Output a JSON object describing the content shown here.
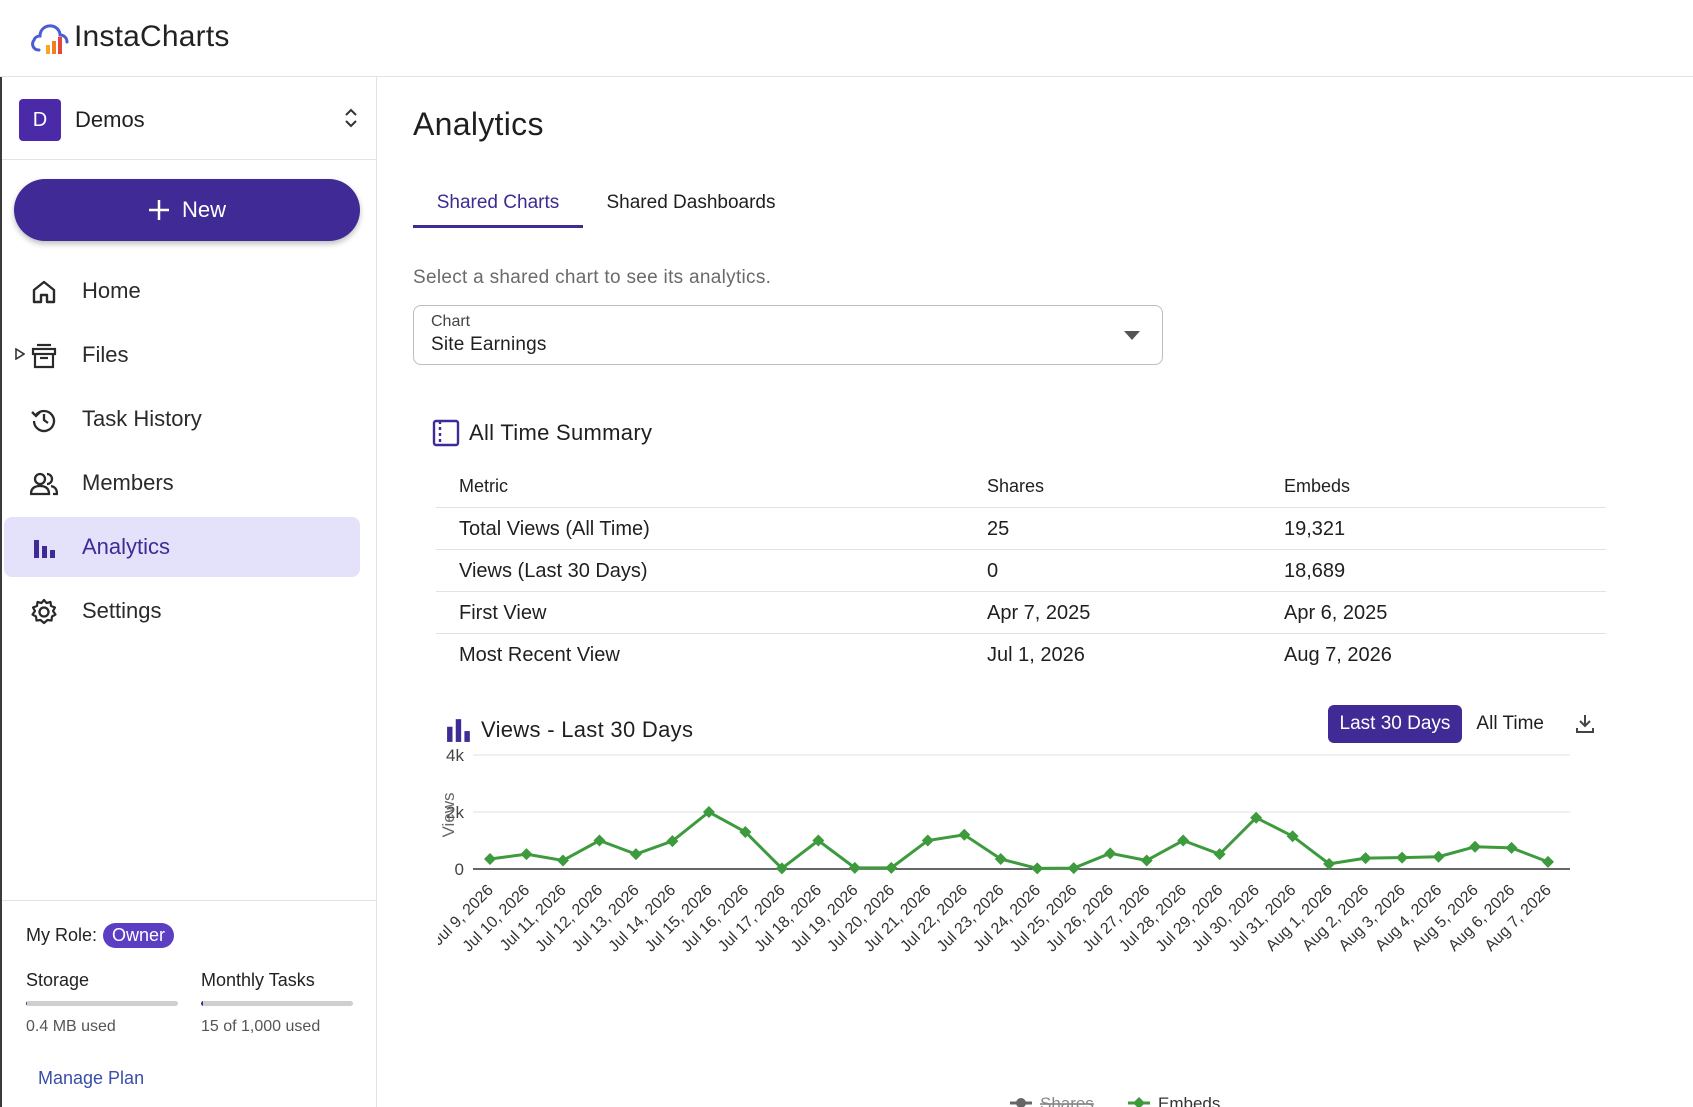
{
  "app": {
    "name": "InstaCharts"
  },
  "org": {
    "initial": "D",
    "name": "Demos"
  },
  "sidebar": {
    "new_label": "New",
    "items": [
      {
        "label": "Home",
        "icon": "home-icon"
      },
      {
        "label": "Files",
        "icon": "files-icon"
      },
      {
        "label": "Task History",
        "icon": "history-icon"
      },
      {
        "label": "Members",
        "icon": "members-icon"
      },
      {
        "label": "Analytics",
        "icon": "analytics-icon",
        "active": true
      },
      {
        "label": "Settings",
        "icon": "gear-icon"
      }
    ],
    "role_label": "My Role:",
    "role_value": "Owner",
    "storage": {
      "label": "Storage",
      "text": "0.4 MB used",
      "fraction": 0.0
    },
    "tasks": {
      "label": "Monthly Tasks",
      "text": "15 of 1,000 used",
      "fraction": 0.015
    },
    "manage_plan": "Manage Plan"
  },
  "main": {
    "title": "Analytics",
    "tabs": [
      {
        "label": "Shared Charts",
        "active": true
      },
      {
        "label": "Shared Dashboards"
      }
    ],
    "hint": "Select a shared chart to see its analytics.",
    "select": {
      "label": "Chart",
      "value": "Site Earnings"
    },
    "summary": {
      "title": "All Time Summary",
      "columns": [
        "Metric",
        "Shares",
        "Embeds"
      ],
      "rows": [
        [
          "Total Views (All Time)",
          "25",
          "19,321"
        ],
        [
          "Views (Last 30 Days)",
          "0",
          "18,689"
        ],
        [
          "First View",
          "Apr 7, 2025",
          "Apr 6, 2025"
        ],
        [
          "Most Recent View",
          "Jul 1, 2026",
          "Aug 7, 2026"
        ]
      ]
    },
    "views": {
      "title": "Views - Last 30 Days",
      "range_active": "Last 30 Days",
      "range_other": "All Time"
    }
  },
  "colors": {
    "accent": "#3f2a96",
    "embeds": "#3d9a3d",
    "shares": "#666666"
  },
  "chart_data": {
    "type": "line",
    "title": "Views - Last 30 Days",
    "xlabel": "",
    "ylabel": "Views",
    "ylim": [
      0,
      4000
    ],
    "yticks": [
      "0",
      "2k",
      "4k"
    ],
    "grid": true,
    "legend": "bottom",
    "categories": [
      "Jul 9, 2026",
      "Jul 10, 2026",
      "Jul 11, 2026",
      "Jul 12, 2026",
      "Jul 13, 2026",
      "Jul 14, 2026",
      "Jul 15, 2026",
      "Jul 16, 2026",
      "Jul 17, 2026",
      "Jul 18, 2026",
      "Jul 19, 2026",
      "Jul 20, 2026",
      "Jul 21, 2026",
      "Jul 22, 2026",
      "Jul 23, 2026",
      "Jul 24, 2026",
      "Jul 25, 2026",
      "Jul 26, 2026",
      "Jul 27, 2026",
      "Jul 28, 2026",
      "Jul 29, 2026",
      "Jul 30, 2026",
      "Jul 31, 2026",
      "Aug 1, 2026",
      "Aug 2, 2026",
      "Aug 3, 2026",
      "Aug 4, 2026",
      "Aug 5, 2026",
      "Aug 6, 2026",
      "Aug 7, 2026"
    ],
    "series": [
      {
        "name": "Shares",
        "hidden": true,
        "values": [
          0,
          0,
          0,
          0,
          0,
          0,
          0,
          0,
          0,
          0,
          0,
          0,
          0,
          0,
          0,
          0,
          0,
          0,
          0,
          0,
          0,
          0,
          0,
          0,
          0,
          0,
          0,
          0,
          0,
          0
        ]
      },
      {
        "name": "Embeds",
        "values": [
          350,
          520,
          300,
          1000,
          520,
          980,
          2000,
          1300,
          20,
          1000,
          40,
          40,
          1000,
          1200,
          350,
          20,
          30,
          550,
          300,
          1000,
          520,
          1800,
          1150,
          180,
          380,
          400,
          430,
          780,
          740,
          250
        ]
      }
    ]
  }
}
